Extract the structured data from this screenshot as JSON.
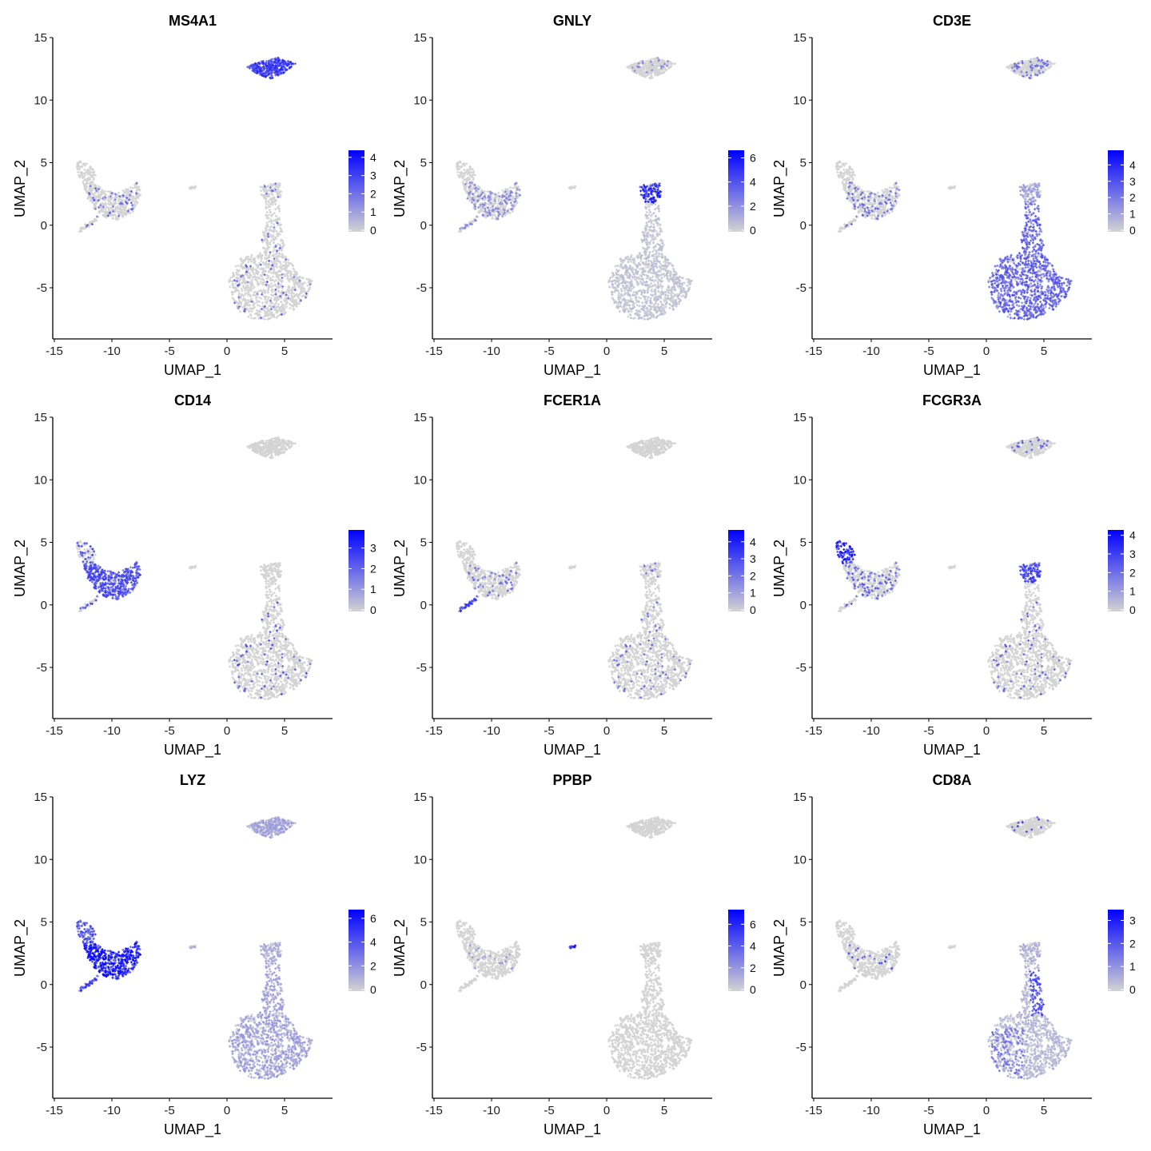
{
  "figure": {
    "colors": {
      "low": "#d3d3d3",
      "high": "#0000ff",
      "axis": "#000000"
    }
  },
  "chart_data": [
    {
      "type": "scatter",
      "title": "MS4A1",
      "xlabel": "UMAP_1",
      "ylabel": "UMAP_2",
      "xlim": [
        -15.2,
        9
      ],
      "ylim": [
        -9,
        15
      ],
      "xticks": [
        "-15",
        "-10",
        "-5",
        "0",
        "5"
      ],
      "yticks": [
        "-5",
        "0",
        "5",
        "10",
        "15"
      ],
      "legend": {
        "position": "right",
        "max": 4.3,
        "ticks": [
          "0",
          "1",
          "2",
          "3",
          "4"
        ]
      },
      "cluster_expression": {
        "b_cells": 2.8,
        "monocytes": 0.1,
        "t_cells": 0.05,
        "nk": 0.05,
        "dc": 0.1,
        "platelets": 0.0
      }
    },
    {
      "type": "scatter",
      "title": "GNLY",
      "xlabel": "UMAP_1",
      "ylabel": "UMAP_2",
      "xlim": [
        -15.2,
        9
      ],
      "ylim": [
        -9,
        15
      ],
      "xticks": [
        "-15",
        "-10",
        "-5",
        "0",
        "5"
      ],
      "yticks": [
        "-5",
        "0",
        "5",
        "10",
        "15"
      ],
      "legend": {
        "position": "right",
        "max": 6.5,
        "ticks": [
          "0",
          "2",
          "4",
          "6"
        ]
      },
      "cluster_expression": {
        "b_cells": 0.1,
        "monocytes": 0.3,
        "t_cells": 0.6,
        "nk": 4.8,
        "dc": 0.3,
        "platelets": 0.0
      }
    },
    {
      "type": "scatter",
      "title": "CD3E",
      "xlabel": "UMAP_1",
      "ylabel": "UMAP_2",
      "xlim": [
        -15.2,
        9
      ],
      "ylim": [
        -9,
        15
      ],
      "xticks": [
        "-15",
        "-10",
        "-5",
        "0",
        "5"
      ],
      "yticks": [
        "-5",
        "0",
        "5",
        "10",
        "15"
      ],
      "legend": {
        "position": "right",
        "max": 4.8,
        "ticks": [
          "0",
          "1",
          "2",
          "3",
          "4"
        ]
      },
      "cluster_expression": {
        "b_cells": 0.2,
        "monocytes": 0.2,
        "t_cells": 2.4,
        "nk": 1.2,
        "dc": 0.1,
        "platelets": 0.0
      }
    },
    {
      "type": "scatter",
      "title": "CD14",
      "xlabel": "UMAP_1",
      "ylabel": "UMAP_2",
      "xlim": [
        -15.2,
        9
      ],
      "ylim": [
        -9,
        15
      ],
      "xticks": [
        "-15",
        "-10",
        "-5",
        "0",
        "5"
      ],
      "yticks": [
        "-5",
        "0",
        "5",
        "10",
        "15"
      ],
      "legend": {
        "position": "right",
        "max": 3.8,
        "ticks": [
          "0",
          "1",
          "2",
          "3"
        ]
      },
      "cluster_expression": {
        "b_cells": 0.0,
        "monocytes": 2.2,
        "t_cells": 0.05,
        "nk": 0.0,
        "dc": 0.2,
        "fcgr3a_mono": 0.3,
        "platelets": 0.0
      }
    },
    {
      "type": "scatter",
      "title": "FCER1A",
      "xlabel": "UMAP_1",
      "ylabel": "UMAP_2",
      "xlim": [
        -15.2,
        9
      ],
      "ylim": [
        -9,
        15
      ],
      "xticks": [
        "-15",
        "-10",
        "-5",
        "0",
        "5"
      ],
      "yticks": [
        "-5",
        "0",
        "5",
        "10",
        "15"
      ],
      "legend": {
        "position": "right",
        "max": 4.6,
        "ticks": [
          "0",
          "1",
          "2",
          "3",
          "4"
        ]
      },
      "cluster_expression": {
        "b_cells": 0.0,
        "monocytes": 0.1,
        "t_cells": 0.05,
        "nk": 0.05,
        "dc": 2.8,
        "platelets": 0.0
      }
    },
    {
      "type": "scatter",
      "title": "FCGR3A",
      "xlabel": "UMAP_1",
      "ylabel": "UMAP_2",
      "xlim": [
        -15.2,
        9
      ],
      "ylim": [
        -9,
        15
      ],
      "xticks": [
        "-15",
        "-10",
        "-5",
        "0",
        "5"
      ],
      "yticks": [
        "-5",
        "0",
        "5",
        "10",
        "15"
      ],
      "legend": {
        "position": "right",
        "max": 4.2,
        "ticks": [
          "0",
          "1",
          "2",
          "3",
          "4"
        ]
      },
      "cluster_expression": {
        "b_cells": 0.1,
        "monocytes": 0.2,
        "t_cells": 0.05,
        "nk": 2.6,
        "dc": 0.1,
        "fcgr3a_mono": 3.2,
        "platelets": 0.0
      }
    },
    {
      "type": "scatter",
      "title": "LYZ",
      "xlabel": "UMAP_1",
      "ylabel": "UMAP_2",
      "xlim": [
        -15.2,
        9
      ],
      "ylim": [
        -9,
        15
      ],
      "xticks": [
        "-15",
        "-10",
        "-5",
        "0",
        "5"
      ],
      "yticks": [
        "-5",
        "0",
        "5",
        "10",
        "15"
      ],
      "legend": {
        "position": "right",
        "max": 6.6,
        "ticks": [
          "0",
          "2",
          "4",
          "6"
        ]
      },
      "cluster_expression": {
        "b_cells": 1.5,
        "monocytes": 5.2,
        "t_cells": 1.6,
        "nk": 1.3,
        "dc": 4.0,
        "fcgr3a_mono": 3.6,
        "platelets": 1.5
      }
    },
    {
      "type": "scatter",
      "title": "PPBP",
      "xlabel": "UMAP_1",
      "ylabel": "UMAP_2",
      "xlim": [
        -15.2,
        9
      ],
      "ylim": [
        -9,
        15
      ],
      "xticks": [
        "-15",
        "-10",
        "-5",
        "0",
        "5"
      ],
      "yticks": [
        "-5",
        "0",
        "5",
        "10",
        "15"
      ],
      "legend": {
        "position": "right",
        "max": 7.2,
        "ticks": [
          "0",
          "2",
          "4",
          "6"
        ]
      },
      "cluster_expression": {
        "b_cells": 0.0,
        "monocytes": 0.05,
        "t_cells": 0.0,
        "nk": 0.0,
        "dc": 0.0,
        "platelets": 6.8
      }
    },
    {
      "type": "scatter",
      "title": "CD8A",
      "xlabel": "UMAP_1",
      "ylabel": "UMAP_2",
      "xlim": [
        -15.2,
        9
      ],
      "ylim": [
        -9,
        15
      ],
      "xticks": [
        "-15",
        "-10",
        "-5",
        "0",
        "5"
      ],
      "yticks": [
        "-5",
        "0",
        "5",
        "10",
        "15"
      ],
      "legend": {
        "position": "right",
        "max": 3.4,
        "ticks": [
          "0",
          "1",
          "2",
          "3"
        ]
      },
      "cluster_expression": {
        "b_cells": 0.05,
        "monocytes": 0.05,
        "t_cells": 0.5,
        "cd8_t": 2.0,
        "nk": 0.6,
        "dc": 0.0,
        "platelets": 0.0
      }
    }
  ]
}
